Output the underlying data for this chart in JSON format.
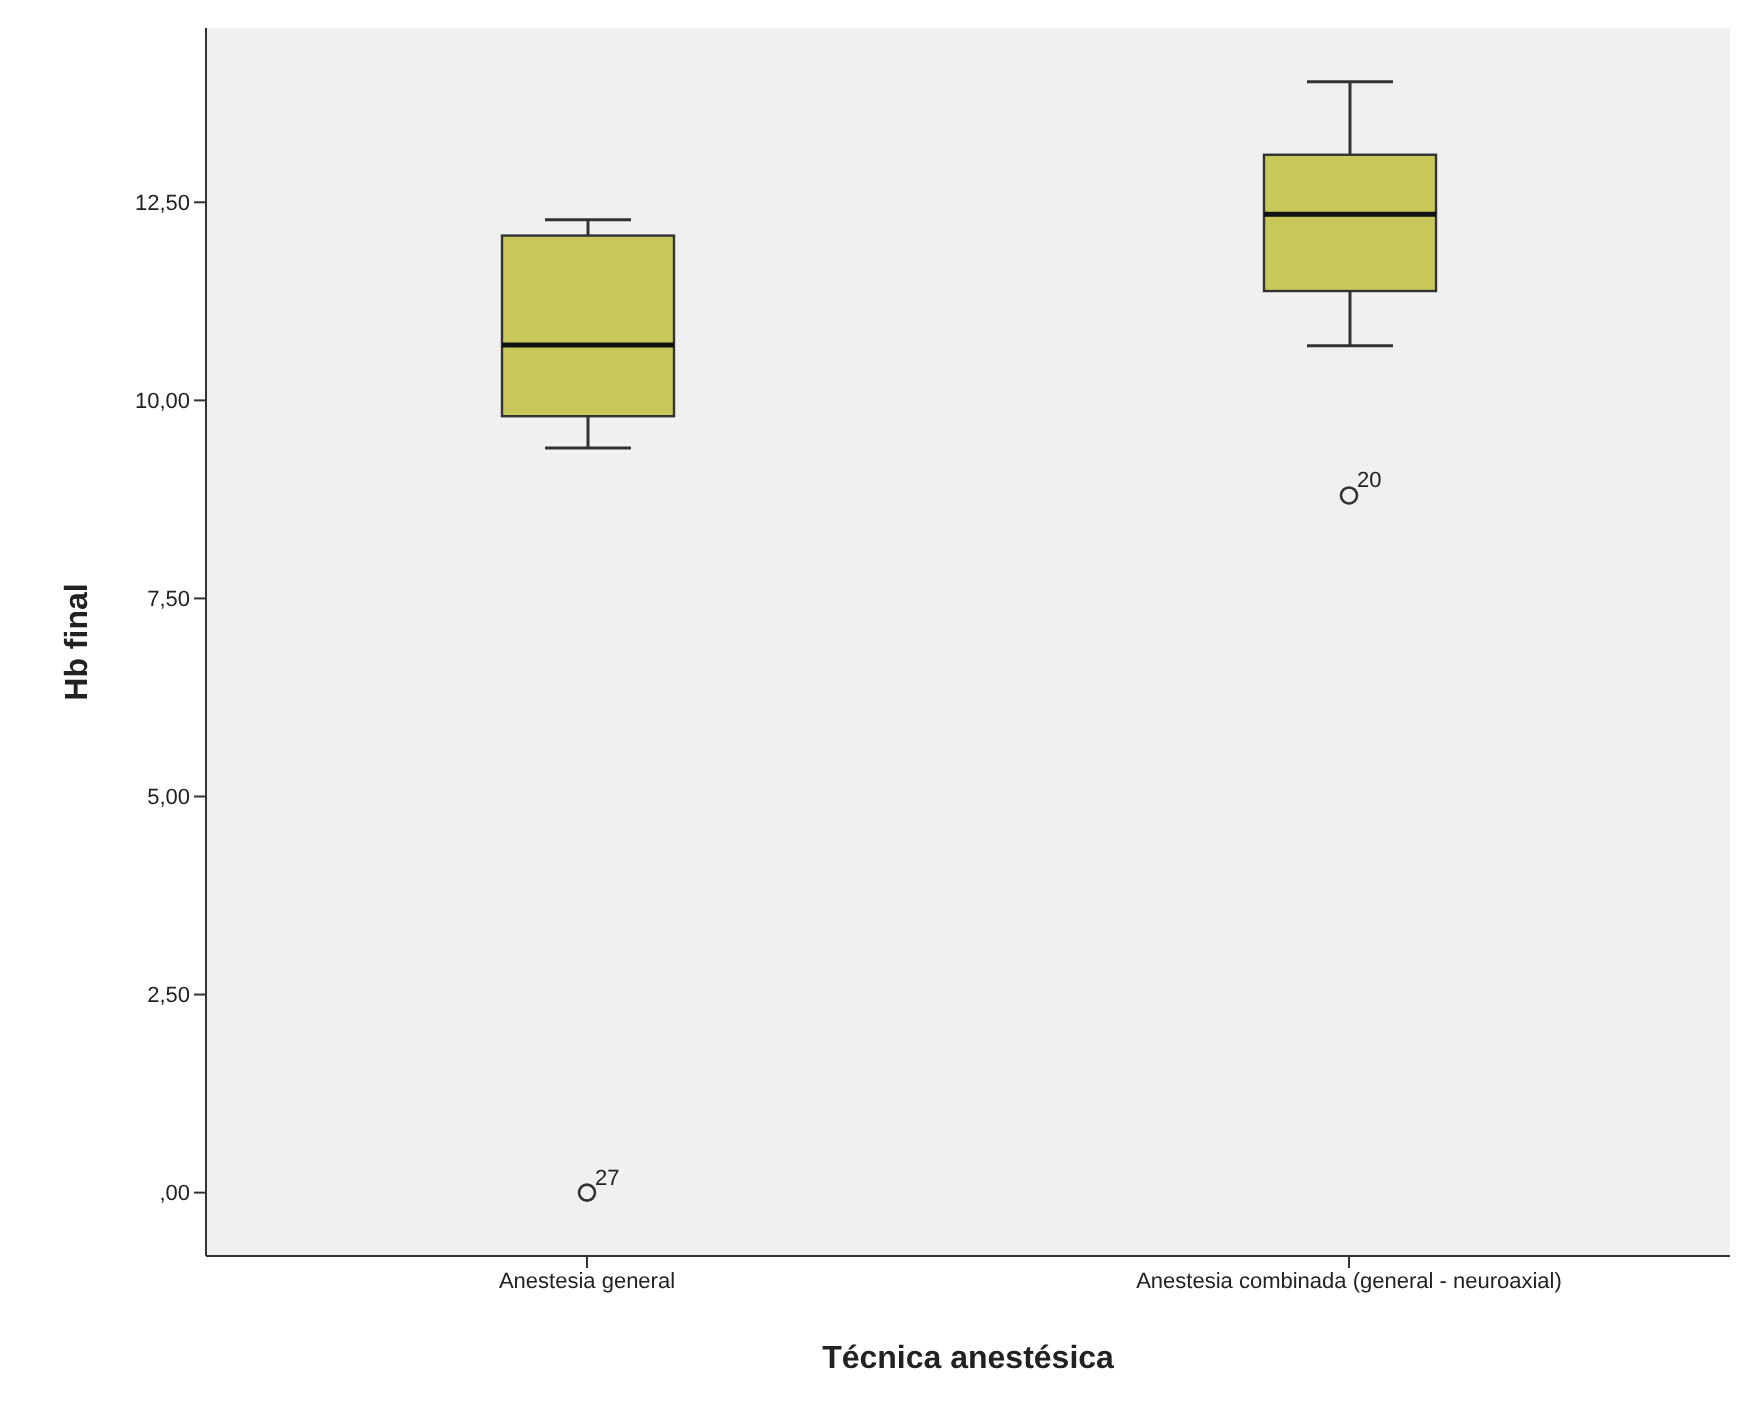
{
  "chart_data": {
    "type": "box",
    "xlabel": "Técnica anestésica",
    "ylabel": "Hb final",
    "categories": [
      "Anestesia general",
      "Anestesia combinada (general - neuroaxial)"
    ],
    "color": "#c8c85a",
    "boxes": [
      {
        "low": 9.4,
        "q1": 9.8,
        "median": 10.7,
        "q3": 12.08,
        "high": 12.28,
        "outliers": [
          0
        ]
      },
      {
        "low": 10.69,
        "q1": 11.38,
        "median": 12.35,
        "q3": 13.1,
        "high": 14.02,
        "outliers": [
          8.8
        ]
      }
    ],
    "ylim": [
      -0.8,
      14.7
    ],
    "yticks": [
      {
        "value": 0,
        "label": ",00"
      },
      {
        "value": 2.5,
        "label": "2,50"
      },
      {
        "value": 5,
        "label": "5,00"
      },
      {
        "value": 7.5,
        "label": "7,50"
      },
      {
        "value": 10,
        "label": "10,00"
      },
      {
        "value": 12.5,
        "label": "12,50"
      }
    ],
    "annotations": [
      "27",
      "20"
    ]
  }
}
